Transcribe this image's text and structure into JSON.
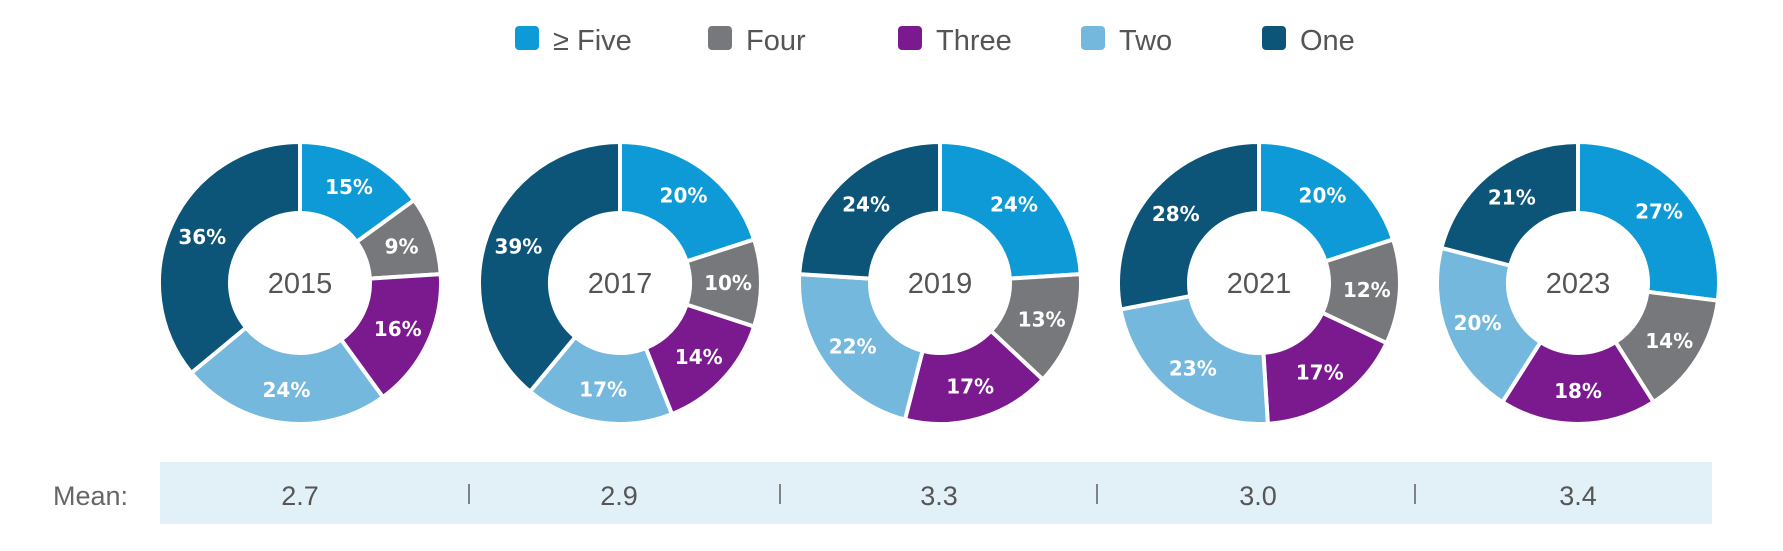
{
  "chart_data": {
    "type": "pie",
    "variant": "donut",
    "categories": [
      "≥ Five",
      "Four",
      "Three",
      "Two",
      "One"
    ],
    "colors": {
      "≥ Five": "#0d9ad6",
      "Four": "#76787b",
      "Three": "#7a1a8e",
      "Two": "#74b8dd",
      "One": "#0c5478"
    },
    "charts": [
      {
        "year": "2015",
        "values": [
          15,
          9,
          16,
          24,
          36
        ],
        "mean": "2.7"
      },
      {
        "year": "2017",
        "values": [
          20,
          10,
          14,
          17,
          39
        ],
        "mean": "2.9"
      },
      {
        "year": "2019",
        "values": [
          24,
          13,
          17,
          22,
          24
        ],
        "mean": "3.3"
      },
      {
        "year": "2021",
        "values": [
          20,
          12,
          17,
          23,
          28
        ],
        "mean": "3.0"
      },
      {
        "year": "2023",
        "values": [
          27,
          14,
          18,
          20,
          21
        ],
        "mean": "3.4"
      }
    ],
    "mean_label": "Mean:",
    "value_suffix": "%",
    "legend_position": "top-center",
    "mean_band_color": "#e2f0f8"
  }
}
